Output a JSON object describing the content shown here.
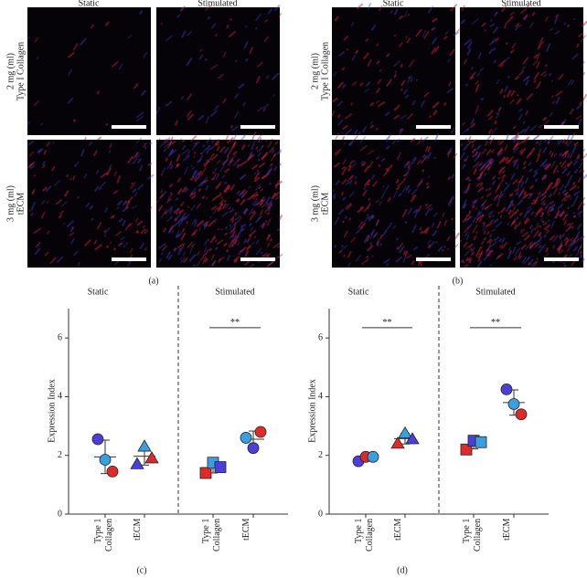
{
  "panel_a": {
    "label": "(a)",
    "columns": [
      "Static",
      "Stimulated"
    ],
    "rows": [
      [
        "2 mg (ml)",
        "Type I Collagen"
      ],
      [
        "3 mg (ml)",
        "tECM"
      ]
    ]
  },
  "panel_b": {
    "label": "(b)",
    "columns": [
      "Static",
      "Stimulated"
    ],
    "rows": [
      [
        "2 mg (ml)",
        "Type I Collagen"
      ],
      [
        "3 mg (ml)",
        "tECM"
      ]
    ]
  },
  "chart_data": [
    {
      "type": "scatter",
      "label": "(c)",
      "ylabel": "Expression Index",
      "groups": [
        "Static",
        "Stimulated"
      ],
      "categories": [
        "Type 1 Collagen",
        "tECM",
        "Type 1 Collagen",
        "tECM"
      ],
      "ylim": [
        0,
        7
      ],
      "yticks": [
        0,
        2,
        4,
        6
      ],
      "series": [
        {
          "marker": "circle",
          "values": [
            2.55,
            1.85,
            1.45
          ],
          "colors": [
            "#4b3fd8",
            "#3a9fe0",
            "#e02a2a"
          ],
          "mean": 1.95,
          "sd": 0.57
        },
        {
          "marker": "triangle",
          "values": [
            1.7,
            2.3,
            1.9
          ],
          "colors": [
            "#4b3fd8",
            "#3a9fe0",
            "#e02a2a"
          ],
          "mean": 1.97,
          "sd": 0.3
        },
        {
          "marker": "square",
          "values": [
            1.4,
            1.75,
            1.6
          ],
          "colors": [
            "#e02a2a",
            "#3a9fe0",
            "#4b3fd8"
          ],
          "mean": 1.58,
          "sd": 0.18
        },
        {
          "marker": "circle",
          "values": [
            2.6,
            2.25,
            2.8
          ],
          "colors": [
            "#3a9fe0",
            "#4b3fd8",
            "#e02a2a"
          ],
          "mean": 2.55,
          "sd": 0.28
        }
      ],
      "significance": [
        {
          "categories": [
            2,
            3
          ],
          "label": "**",
          "value": 6.35
        }
      ]
    },
    {
      "type": "scatter",
      "label": "(d)",
      "ylabel": "Expression Index",
      "groups": [
        "Static",
        "Stimulated"
      ],
      "categories": [
        "Type 1 Collagen",
        "tECM",
        "Type 1 Collagen",
        "tECM"
      ],
      "ylim": [
        0,
        7
      ],
      "yticks": [
        0,
        2,
        4,
        6
      ],
      "series": [
        {
          "marker": "circle",
          "values": [
            1.8,
            1.95,
            1.95
          ],
          "colors": [
            "#4b3fd8",
            "#e02a2a",
            "#3a9fe0"
          ],
          "mean": 1.9,
          "sd": 0.09
        },
        {
          "marker": "triangle",
          "values": [
            2.4,
            2.75,
            2.55
          ],
          "colors": [
            "#e02a2a",
            "#3a9fe0",
            "#4b3fd8"
          ],
          "mean": 2.57,
          "sd": 0.18
        },
        {
          "marker": "square",
          "values": [
            2.2,
            2.5,
            2.45
          ],
          "colors": [
            "#e02a2a",
            "#4b3fd8",
            "#3a9fe0"
          ],
          "mean": 2.38,
          "sd": 0.16
        },
        {
          "marker": "circle",
          "values": [
            4.25,
            3.75,
            3.4
          ],
          "colors": [
            "#4b3fd8",
            "#3a9fe0",
            "#e02a2a"
          ],
          "mean": 3.8,
          "sd": 0.43
        }
      ],
      "significance": [
        {
          "categories": [
            0,
            1
          ],
          "label": "**",
          "value": 6.35
        },
        {
          "categories": [
            2,
            3
          ],
          "label": "**",
          "value": 6.35
        }
      ]
    }
  ]
}
